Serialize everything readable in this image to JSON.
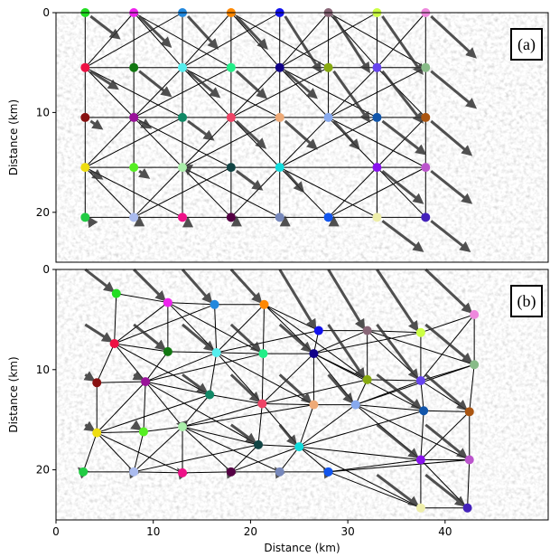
{
  "chart_data": [
    {
      "type": "scatter",
      "label": "(a)",
      "ylabel": "Distance (km)",
      "xlim": [
        0,
        50.6
      ],
      "ylim": [
        0,
        25
      ],
      "yticks": [
        0,
        10,
        20
      ],
      "x": [
        3,
        8,
        13,
        18,
        23,
        28,
        33,
        38,
        3,
        8,
        13,
        18,
        23,
        28,
        33,
        38,
        3,
        8,
        13,
        18,
        23,
        28,
        33,
        38,
        3,
        8,
        13,
        18,
        23,
        33,
        38,
        3,
        8,
        13,
        18,
        23,
        28,
        33,
        38
      ],
      "y": [
        0,
        0,
        0,
        0,
        0,
        0,
        0,
        0,
        5.5,
        5.5,
        5.5,
        5.5,
        5.5,
        5.5,
        5.5,
        5.5,
        10.5,
        10.5,
        10.5,
        10.5,
        10.5,
        10.5,
        10.5,
        10.5,
        15.5,
        15.5,
        15.5,
        15.5,
        15.5,
        15.5,
        15.5,
        20.5,
        20.5,
        20.5,
        20.5,
        20.5,
        20.5,
        20.5,
        20.5
      ],
      "colors": [
        "#22dd22",
        "#ee22ee",
        "#2288dd",
        "#ff8800",
        "#1111ee",
        "#886677",
        "#ccff44",
        "#ee88dd",
        "#ee1144",
        "#117711",
        "#55eeee",
        "#22ee88",
        "#110088",
        "#88aa11",
        "#6644ee",
        "#88bb88",
        "#881111",
        "#991199",
        "#118866",
        "#ee4466",
        "#eeaa77",
        "#88aaee",
        "#1155aa",
        "#aa5511",
        "#eedd11",
        "#55ee22",
        "#aaeeaa",
        "#114444",
        "#11dddd",
        "#8811ee",
        "#bb55cc",
        "#22cc44",
        "#aabbee",
        "#ee1188",
        "#550044",
        "#7788bb",
        "#1155ee",
        "#eeeeaa",
        "#4422bb"
      ]
    },
    {
      "type": "scatter",
      "label": "(b)",
      "ylabel": "Distance (km)",
      "xlabel": "Distance (km)",
      "xlim": [
        0,
        50.6
      ],
      "ylim": [
        0,
        25
      ],
      "yticks": [
        0,
        10,
        20
      ],
      "xticks": [
        0,
        10,
        20,
        30,
        40
      ],
      "x": [
        6.2,
        11.5,
        16.3,
        21.4,
        27,
        32,
        37.5,
        43,
        6,
        11.5,
        16.5,
        21.3,
        26.5,
        32,
        37.5,
        43,
        4.2,
        9.2,
        15.8,
        21.2,
        26.5,
        30.8,
        37.8,
        42.5,
        4.2,
        9,
        13,
        20.8,
        25,
        37.5,
        42.5,
        2.8,
        8,
        13,
        18,
        23,
        28,
        37.5,
        42.3
      ],
      "y": [
        2.4,
        3.3,
        3.5,
        3.5,
        6.1,
        6.1,
        6.3,
        4.5,
        7.4,
        8.2,
        8.3,
        8.4,
        8.4,
        11,
        11.1,
        9.5,
        11.3,
        11.2,
        12.5,
        13.4,
        13.5,
        13.5,
        14.1,
        14.2,
        16.3,
        16.2,
        15.7,
        17.5,
        17.7,
        19,
        19,
        20.2,
        20.2,
        20.3,
        20.2,
        20.2,
        20.2,
        23.8,
        23.8
      ],
      "colors": [
        "#22dd22",
        "#ee22ee",
        "#2288dd",
        "#ff8800",
        "#1111ee",
        "#886677",
        "#ccff44",
        "#ee88dd",
        "#ee1144",
        "#117711",
        "#55eeee",
        "#22ee88",
        "#110088",
        "#88aa11",
        "#6644ee",
        "#88bb88",
        "#881111",
        "#991199",
        "#118866",
        "#ee4466",
        "#eeaa77",
        "#88aaee",
        "#1155aa",
        "#aa5511",
        "#eedd11",
        "#55ee22",
        "#aaeeaa",
        "#114444",
        "#11dddd",
        "#8811ee",
        "#bb55cc",
        "#22cc44",
        "#aabbee",
        "#ee1188",
        "#550044",
        "#7788bb",
        "#1155ee",
        "#eeeeaa",
        "#4422bb"
      ]
    }
  ]
}
